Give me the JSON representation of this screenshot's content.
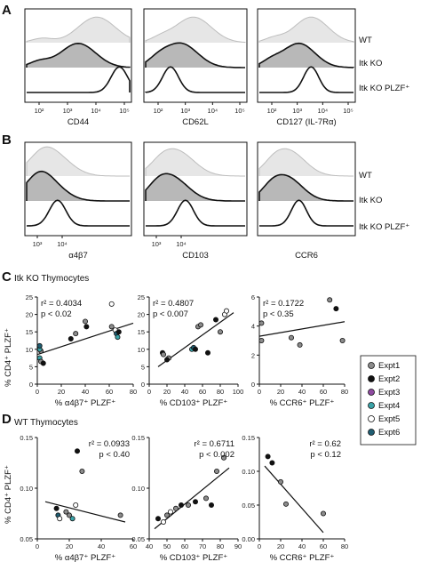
{
  "panels": {
    "A": {
      "label": "A",
      "row_labels": [
        "WT",
        "Itk KO",
        "Itk KO PLZF⁺"
      ],
      "plots": [
        {
          "xlabel": "CD44",
          "ticks": [
            "10²",
            "10³",
            "10⁴",
            "10⁵"
          ],
          "peaks": [
            0.68,
            0.5,
            0.9
          ]
        },
        {
          "xlabel": "CD62L",
          "ticks": [
            "10²",
            "10³",
            "10⁴",
            "10⁵"
          ],
          "peaks": [
            0.48,
            0.35,
            0.25
          ]
        },
        {
          "xlabel": "CD127 (IL-7Rα)",
          "ticks": [
            "10²",
            "10³",
            "10⁴",
            "10⁵"
          ],
          "peaks": [
            0.55,
            0.42,
            0.55
          ]
        }
      ]
    },
    "B": {
      "label": "B",
      "row_labels": [
        "WT",
        "Itk KO",
        "Itk KO PLZF⁺"
      ],
      "plots": [
        {
          "xlabel": "α4β7",
          "ticks": [
            "10³",
            "10⁴"
          ],
          "peaks": [
            0.22,
            0.16,
            0.3
          ]
        },
        {
          "xlabel": "CD103",
          "ticks": [
            "10³",
            "10⁴"
          ],
          "peaks": [
            0.3,
            0.25,
            0.4
          ]
        },
        {
          "xlabel": "CCR6",
          "ticks": [],
          "peaks": [
            0.3,
            0.28,
            0.42
          ]
        }
      ]
    },
    "C": {
      "label": "C",
      "title": "Itk KO Thymocytes",
      "ylabel": "% CD4⁺ PLZF⁺"
    },
    "D": {
      "label": "D",
      "title": "WT Thymocytes",
      "ylabel": "% CD4⁺ PLZF⁺"
    }
  },
  "legend": {
    "items": [
      {
        "label": "Expt1",
        "color": "#8c8c8c"
      },
      {
        "label": "Expt2",
        "color": "#111111"
      },
      {
        "label": "Expt3",
        "color": "#8e4aa0"
      },
      {
        "label": "Expt4",
        "color": "#3aa3a8"
      },
      {
        "label": "Expt5",
        "color": "#ffffff"
      },
      {
        "label": "Expt6",
        "color": "#1f5d72"
      }
    ]
  },
  "chart_data": [
    {
      "type": "scatter",
      "panel": "C",
      "xlabel": "% α4β7⁺ PLZF⁺",
      "ylabel": "% CD4⁺ PLZF⁺",
      "xlim": [
        0,
        80
      ],
      "ylim": [
        0,
        25
      ],
      "xticks": [
        "0",
        "20",
        "40",
        "60",
        "80"
      ],
      "yticks": [
        "0",
        "5",
        "10",
        "15",
        "20",
        "25"
      ],
      "stat_r2": "r² = 0.4034",
      "stat_p": "p < 0.02",
      "points": [
        {
          "x": 3,
          "y": 9.5,
          "expt": 0
        },
        {
          "x": 2,
          "y": 7.5,
          "expt": 3
        },
        {
          "x": 3,
          "y": 6.5,
          "expt": 0
        },
        {
          "x": 5,
          "y": 6.0,
          "expt": 1
        },
        {
          "x": 2,
          "y": 10,
          "expt": 3
        },
        {
          "x": 2,
          "y": 11,
          "expt": 5
        },
        {
          "x": 28,
          "y": 13,
          "expt": 1
        },
        {
          "x": 32,
          "y": 14.5,
          "expt": 0
        },
        {
          "x": 40,
          "y": 18,
          "expt": 0
        },
        {
          "x": 41,
          "y": 16.5,
          "expt": 1
        },
        {
          "x": 62,
          "y": 23,
          "expt": 4
        },
        {
          "x": 65,
          "y": 15.5,
          "expt": 4
        },
        {
          "x": 62,
          "y": 16.5,
          "expt": 0
        },
        {
          "x": 66,
          "y": 14.5,
          "expt": 5
        },
        {
          "x": 67,
          "y": 13.5,
          "expt": 3
        },
        {
          "x": 68,
          "y": 15.0,
          "expt": 1
        }
      ],
      "fit": {
        "x": [
          0,
          80
        ],
        "y": [
          8.5,
          17.5
        ]
      }
    },
    {
      "type": "scatter",
      "panel": "C",
      "xlabel": "% CD103⁺ PLZF⁺",
      "ylabel": "% CD4⁺ PLZF⁺",
      "xlim": [
        0,
        100
      ],
      "ylim": [
        0,
        25
      ],
      "xticks": [
        "0",
        "20",
        "40",
        "60",
        "80",
        "100"
      ],
      "yticks": [
        "0",
        "5",
        "10",
        "15",
        "20",
        "25"
      ],
      "stat_r2": "r² = 0.4807",
      "stat_p": "p < 0.007",
      "points": [
        {
          "x": 15,
          "y": 9,
          "expt": 1
        },
        {
          "x": 16,
          "y": 8.5,
          "expt": 0
        },
        {
          "x": 22,
          "y": 7.5,
          "expt": 0
        },
        {
          "x": 20,
          "y": 7,
          "expt": 1
        },
        {
          "x": 48,
          "y": 10,
          "expt": 3
        },
        {
          "x": 50,
          "y": 10.5,
          "expt": 5
        },
        {
          "x": 52,
          "y": 10,
          "expt": 1
        },
        {
          "x": 55,
          "y": 16.5,
          "expt": 0
        },
        {
          "x": 58,
          "y": 17,
          "expt": 0
        },
        {
          "x": 66,
          "y": 9,
          "expt": 1
        },
        {
          "x": 75,
          "y": 18.5,
          "expt": 1
        },
        {
          "x": 80,
          "y": 15,
          "expt": 0
        },
        {
          "x": 85,
          "y": 20,
          "expt": 4
        },
        {
          "x": 87,
          "y": 21,
          "expt": 4
        }
      ],
      "fit": {
        "x": [
          10,
          95
        ],
        "y": [
          5,
          20.5
        ]
      }
    },
    {
      "type": "scatter",
      "panel": "C",
      "xlabel": "% CCR6⁺ PLZF⁺",
      "ylabel": "% CD4⁺ PLZF⁺",
      "xlim": [
        0,
        80
      ],
      "ylim": [
        0,
        6
      ],
      "xticks": [
        "0",
        "20",
        "40",
        "60",
        "80"
      ],
      "yticks": [
        "0",
        "2",
        "4",
        "6"
      ],
      "stat_r2": "r² = 0.1722",
      "stat_p": "p < 0.35",
      "points": [
        {
          "x": 2,
          "y": 4.2,
          "expt": 0
        },
        {
          "x": 2,
          "y": 3.0,
          "expt": 0
        },
        {
          "x": 30,
          "y": 3.2,
          "expt": 0
        },
        {
          "x": 38,
          "y": 2.7,
          "expt": 0
        },
        {
          "x": 66,
          "y": 5.8,
          "expt": 0
        },
        {
          "x": 72,
          "y": 5.2,
          "expt": 1
        },
        {
          "x": 78,
          "y": 3.0,
          "expt": 0
        }
      ],
      "fit": {
        "x": [
          0,
          80
        ],
        "y": [
          3.3,
          4.3
        ]
      }
    },
    {
      "type": "scatter",
      "panel": "D",
      "xlabel": "% α4β7⁺ PLZF⁺",
      "ylabel": "% CD4⁺ PLZF⁺",
      "xlim": [
        0,
        60
      ],
      "ylim": [
        0.02,
        0.17
      ],
      "xticks": [
        "0",
        "20",
        "40",
        "60"
      ],
      "yticks": [
        "0.05",
        "0.10",
        "0.15"
      ],
      "stat_r2": "r² = 0.0933",
      "stat_p": "p < 0.40",
      "points": [
        {
          "x": 12,
          "y": 0.065,
          "expt": 1
        },
        {
          "x": 13,
          "y": 0.055,
          "expt": 5
        },
        {
          "x": 14,
          "y": 0.05,
          "expt": 4
        },
        {
          "x": 18,
          "y": 0.06,
          "expt": 0
        },
        {
          "x": 20,
          "y": 0.055,
          "expt": 0
        },
        {
          "x": 22,
          "y": 0.05,
          "expt": 3
        },
        {
          "x": 24,
          "y": 0.07,
          "expt": 4
        },
        {
          "x": 25,
          "y": 0.15,
          "expt": 1
        },
        {
          "x": 28,
          "y": 0.12,
          "expt": 0
        },
        {
          "x": 52,
          "y": 0.055,
          "expt": 0
        }
      ],
      "fit": {
        "x": [
          5,
          55
        ],
        "y": [
          0.075,
          0.045
        ]
      }
    },
    {
      "type": "scatter",
      "panel": "D",
      "xlabel": "% CD103⁺ PLZF⁺",
      "ylabel": "% CD4⁺ PLZF⁺",
      "xlim": [
        40,
        90
      ],
      "ylim": [
        0.02,
        0.17
      ],
      "xticks": [
        "40",
        "50",
        "60",
        "70",
        "80",
        "90"
      ],
      "yticks": [
        "0.05",
        "0.10",
        "0.15"
      ],
      "stat_r2": "r² = 0.6711",
      "stat_p": "p < 0.002",
      "points": [
        {
          "x": 45,
          "y": 0.05,
          "expt": 1
        },
        {
          "x": 48,
          "y": 0.045,
          "expt": 4
        },
        {
          "x": 50,
          "y": 0.055,
          "expt": 0
        },
        {
          "x": 52,
          "y": 0.06,
          "expt": 4
        },
        {
          "x": 55,
          "y": 0.065,
          "expt": 0
        },
        {
          "x": 58,
          "y": 0.07,
          "expt": 1
        },
        {
          "x": 62,
          "y": 0.07,
          "expt": 0
        },
        {
          "x": 66,
          "y": 0.075,
          "expt": 1
        },
        {
          "x": 72,
          "y": 0.08,
          "expt": 0
        },
        {
          "x": 75,
          "y": 0.07,
          "expt": 1
        },
        {
          "x": 78,
          "y": 0.12,
          "expt": 0
        },
        {
          "x": 82,
          "y": 0.14,
          "expt": 0
        }
      ],
      "fit": {
        "x": [
          43,
          85
        ],
        "y": [
          0.035,
          0.125
        ]
      }
    },
    {
      "type": "scatter",
      "panel": "D",
      "xlabel": "% CCR6⁺ PLZF⁺",
      "ylabel": "% CD4⁺ PLZF⁺",
      "xlim": [
        0,
        80
      ],
      "ylim": [
        0.0,
        0.16
      ],
      "xticks": [
        "0",
        "20",
        "40",
        "60",
        "80"
      ],
      "yticks": [
        "0.00",
        "0.05",
        "0.10",
        "0.15"
      ],
      "stat_r2": "r² = 0.62",
      "stat_p": "p < 0.12",
      "points": [
        {
          "x": 8,
          "y": 0.13,
          "expt": 1
        },
        {
          "x": 12,
          "y": 0.12,
          "expt": 1
        },
        {
          "x": 20,
          "y": 0.09,
          "expt": 0
        },
        {
          "x": 25,
          "y": 0.055,
          "expt": 0
        },
        {
          "x": 60,
          "y": 0.04,
          "expt": 0
        }
      ],
      "fit": {
        "x": [
          5,
          60
        ],
        "y": [
          0.115,
          0.01
        ]
      }
    }
  ]
}
